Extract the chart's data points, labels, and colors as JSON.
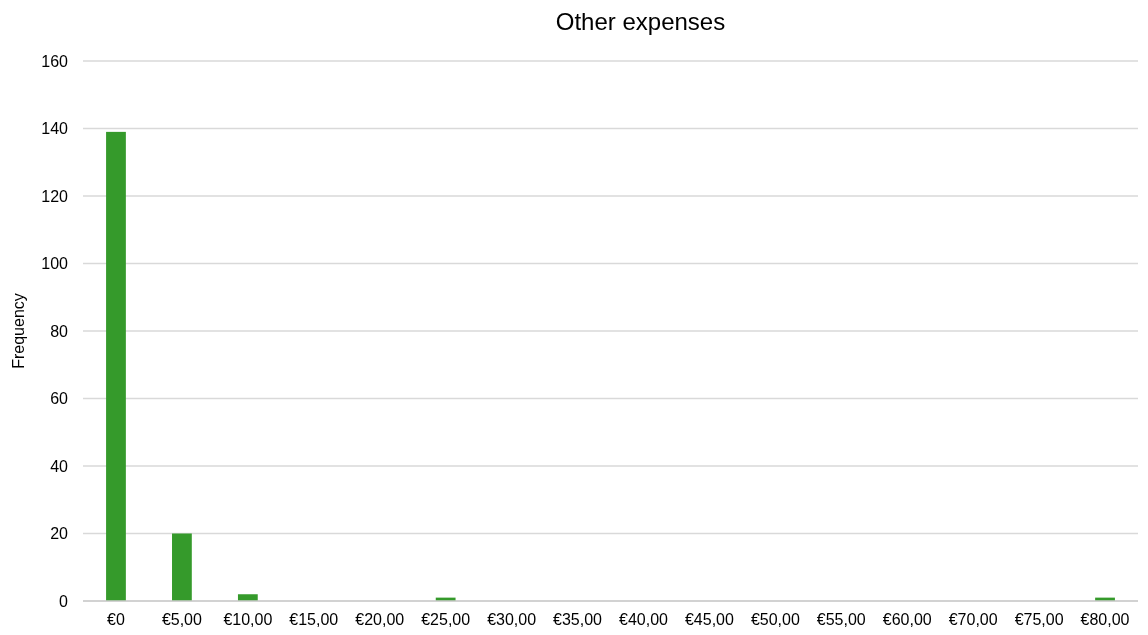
{
  "chart_data": {
    "type": "bar",
    "title": "Other expenses",
    "ylabel": "Frequency",
    "categories": [
      "€0",
      "€5,00",
      "€10,00",
      "€15,00",
      "€20,00",
      "€25,00",
      "€30,00",
      "€35,00",
      "€40,00",
      "€45,00",
      "€50,00",
      "€55,00",
      "€60,00",
      "€70,00",
      "€75,00",
      "€80,00"
    ],
    "values": [
      139,
      20,
      2,
      0,
      0,
      1,
      0,
      0,
      0,
      0,
      0,
      0,
      0,
      0,
      0,
      1
    ],
    "color": "#359a2b",
    "ylim": [
      0,
      160
    ],
    "yticks": [
      0,
      20,
      40,
      60,
      80,
      100,
      120,
      140,
      160
    ],
    "grid": "y"
  }
}
